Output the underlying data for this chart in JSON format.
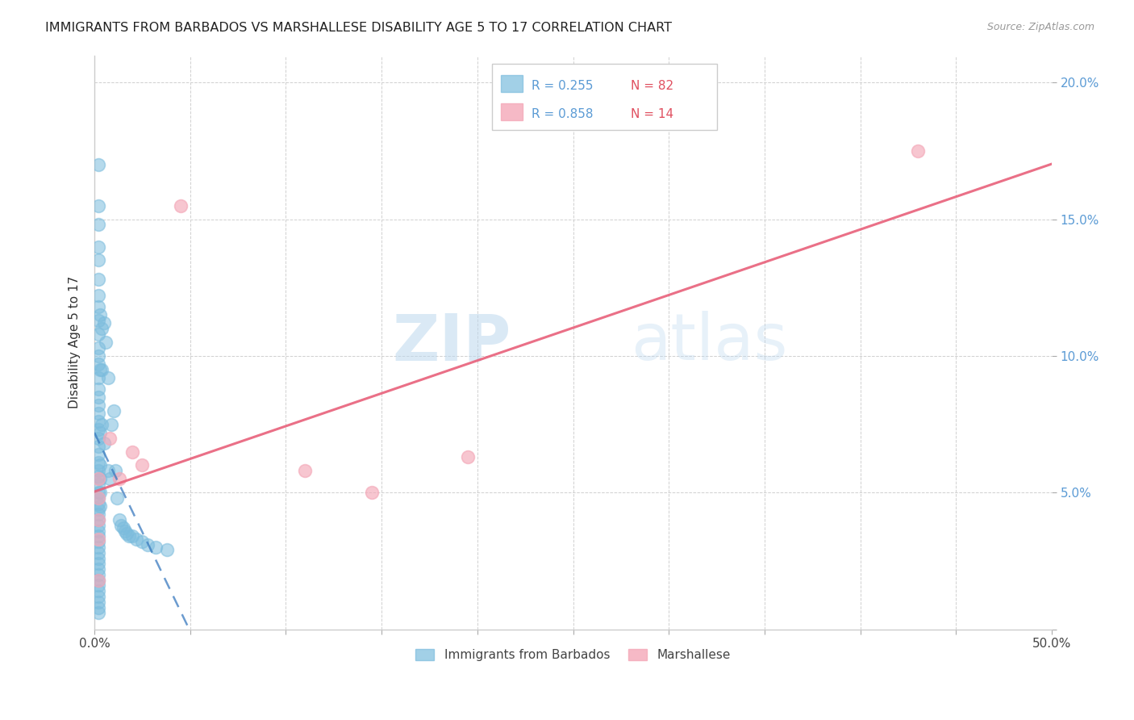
{
  "title": "IMMIGRANTS FROM BARBADOS VS MARSHALLESE DISABILITY AGE 5 TO 17 CORRELATION CHART",
  "source": "Source: ZipAtlas.com",
  "ylabel": "Disability Age 5 to 17",
  "xlim": [
    0.0,
    0.5
  ],
  "ylim": [
    0.0,
    0.21
  ],
  "legend_r1": "R = 0.255",
  "legend_n1": "N = 82",
  "legend_r2": "R = 0.858",
  "legend_n2": "N = 14",
  "barbados_color": "#7bbcdd",
  "marshallese_color": "#f4a8b8",
  "barbados_line_color": "#3a7abf",
  "marshallese_line_color": "#e8607a",
  "watermark_zip": "ZIP",
  "watermark_atlas": "atlas",
  "barbados_x": [
    0.002,
    0.002,
    0.002,
    0.002,
    0.002,
    0.002,
    0.002,
    0.002,
    0.002,
    0.002,
    0.002,
    0.002,
    0.002,
    0.002,
    0.002,
    0.002,
    0.002,
    0.002,
    0.002,
    0.002,
    0.002,
    0.002,
    0.002,
    0.002,
    0.002,
    0.002,
    0.002,
    0.002,
    0.002,
    0.002,
    0.002,
    0.002,
    0.002,
    0.002,
    0.002,
    0.002,
    0.002,
    0.002,
    0.002,
    0.002,
    0.002,
    0.002,
    0.002,
    0.002,
    0.002,
    0.002,
    0.002,
    0.002,
    0.002,
    0.002,
    0.003,
    0.003,
    0.003,
    0.003,
    0.003,
    0.003,
    0.004,
    0.004,
    0.005,
    0.005,
    0.006,
    0.007,
    0.007,
    0.008,
    0.009,
    0.01,
    0.011,
    0.012,
    0.013,
    0.014,
    0.015,
    0.016,
    0.017,
    0.018,
    0.02,
    0.022,
    0.025,
    0.028,
    0.032,
    0.038,
    0.003,
    0.004
  ],
  "barbados_y": [
    0.17,
    0.155,
    0.148,
    0.14,
    0.135,
    0.128,
    0.122,
    0.118,
    0.113,
    0.108,
    0.103,
    0.1,
    0.097,
    0.092,
    0.088,
    0.085,
    0.082,
    0.079,
    0.076,
    0.073,
    0.07,
    0.067,
    0.064,
    0.061,
    0.058,
    0.056,
    0.053,
    0.05,
    0.048,
    0.046,
    0.044,
    0.042,
    0.04,
    0.038,
    0.036,
    0.034,
    0.032,
    0.03,
    0.028,
    0.026,
    0.024,
    0.022,
    0.02,
    0.018,
    0.016,
    0.014,
    0.012,
    0.01,
    0.008,
    0.006,
    0.095,
    0.072,
    0.06,
    0.055,
    0.05,
    0.045,
    0.11,
    0.075,
    0.112,
    0.068,
    0.105,
    0.092,
    0.058,
    0.055,
    0.075,
    0.08,
    0.058,
    0.048,
    0.04,
    0.038,
    0.037,
    0.036,
    0.035,
    0.034,
    0.034,
    0.033,
    0.032,
    0.031,
    0.03,
    0.029,
    0.115,
    0.095
  ],
  "marshallese_x": [
    0.002,
    0.002,
    0.002,
    0.002,
    0.002,
    0.008,
    0.013,
    0.02,
    0.025,
    0.045,
    0.11,
    0.145,
    0.195,
    0.43
  ],
  "marshallese_y": [
    0.055,
    0.048,
    0.04,
    0.033,
    0.018,
    0.07,
    0.055,
    0.065,
    0.06,
    0.155,
    0.058,
    0.05,
    0.063,
    0.175
  ]
}
